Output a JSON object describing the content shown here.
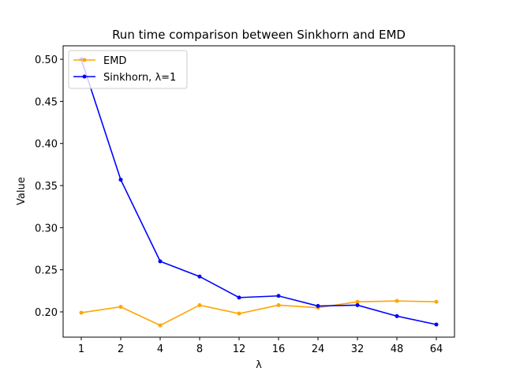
{
  "chart_data": {
    "type": "line",
    "title": "Run time comparison between Sinkhorn and EMD",
    "xlabel": "λ",
    "ylabel": "Value",
    "categories": [
      "1",
      "2",
      "4",
      "8",
      "12",
      "16",
      "24",
      "32",
      "48",
      "64"
    ],
    "ylim": [
      0.17,
      0.516
    ],
    "yticks": [
      "0.20",
      "0.25",
      "0.30",
      "0.35",
      "0.40",
      "0.45",
      "0.50"
    ],
    "grid": false,
    "legend_position": "top-left",
    "series": [
      {
        "name": "EMD",
        "color": "#ffa500",
        "values": [
          0.199,
          0.206,
          0.184,
          0.208,
          0.198,
          0.208,
          0.205,
          0.212,
          0.213,
          0.212
        ]
      },
      {
        "name": "Sinkhorn, λ=1",
        "color": "#0000ff",
        "values": [
          0.5,
          0.357,
          0.26,
          0.242,
          0.217,
          0.219,
          0.207,
          0.208,
          0.195,
          0.185
        ]
      }
    ]
  }
}
